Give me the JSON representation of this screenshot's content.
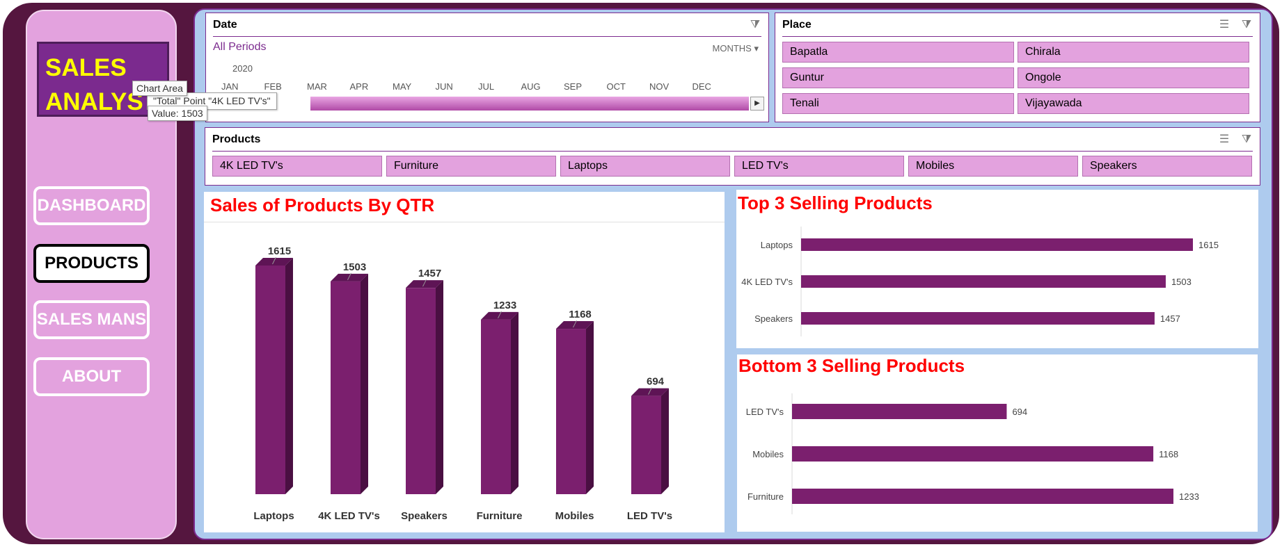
{
  "logo": {
    "line1": "SALES",
    "line2": "ANALYS"
  },
  "nav": [
    {
      "label": "DASHBOARD",
      "active": false
    },
    {
      "label": "PRODUCTS",
      "active": true
    },
    {
      "label": "SALES MANS",
      "active": false
    },
    {
      "label": "ABOUT",
      "active": false
    }
  ],
  "tooltip": {
    "area": "Chart Area",
    "series": "\"Total\" Point \"4K LED TV's\"",
    "value": "Value: 1503"
  },
  "date_slicer": {
    "title": "Date",
    "all_periods": "All Periods",
    "level": "MONTHS",
    "year": "2020",
    "months": [
      "JAN",
      "FEB",
      "MAR",
      "APR",
      "MAY",
      "JUN",
      "JUL",
      "AUG",
      "SEP",
      "OCT",
      "NOV",
      "DEC"
    ]
  },
  "place_slicer": {
    "title": "Place",
    "items": [
      "Bapatla",
      "Chirala",
      "Guntur",
      "Ongole",
      "Tenali",
      "Vijayawada"
    ]
  },
  "products_slicer": {
    "title": "Products",
    "items": [
      "4K LED TV's",
      "Furniture",
      "Laptops",
      "LED TV's",
      "Mobiles",
      "Speakers"
    ]
  },
  "colors": {
    "bar": "#7b1f6e",
    "bar_dark": "#4a0f42",
    "title_red": "#ff0000",
    "frame": "#55163f",
    "sidebar": "#e3a2de"
  },
  "chart_data": [
    {
      "type": "bar",
      "title": "Sales of Products By QTR",
      "categories": [
        "Laptops",
        "4K LED TV's",
        "Speakers",
        "Furniture",
        "Mobiles",
        "LED TV's"
      ],
      "values": [
        1615,
        1503,
        1457,
        1233,
        1168,
        694
      ],
      "ylim": [
        0,
        1615
      ],
      "grid": false
    },
    {
      "type": "bar",
      "orientation": "horizontal",
      "title": "Top 3 Selling Products",
      "categories": [
        "Laptops",
        "4K LED TV's",
        "Speakers"
      ],
      "values": [
        1615,
        1503,
        1457
      ],
      "xlim": [
        0,
        1615
      ]
    },
    {
      "type": "bar",
      "orientation": "horizontal",
      "title": "Bottom 3 Selling Products",
      "categories": [
        "LED TV's",
        "Mobiles",
        "Furniture"
      ],
      "values": [
        694,
        1168,
        1233
      ],
      "xlim": [
        0,
        1233
      ]
    }
  ]
}
